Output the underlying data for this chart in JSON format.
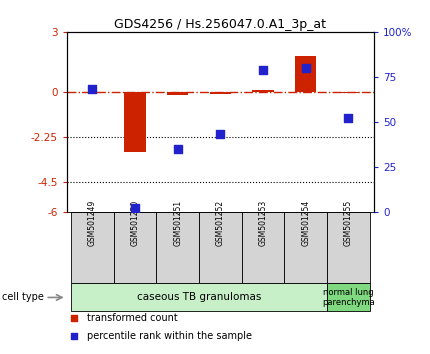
{
  "title": "GDS4256 / Hs.256047.0.A1_3p_at",
  "samples": [
    "GSM501249",
    "GSM501250",
    "GSM501251",
    "GSM501252",
    "GSM501253",
    "GSM501254",
    "GSM501255"
  ],
  "red_values": [
    -0.05,
    -3.0,
    -0.18,
    -0.1,
    0.1,
    1.8,
    -0.08
  ],
  "blue_values": [
    68,
    2,
    35,
    43,
    79,
    80,
    52
  ],
  "left_ylim": [
    -6,
    3
  ],
  "right_ylim": [
    0,
    100
  ],
  "left_yticks": [
    3,
    0,
    -2.25,
    -4.5,
    -6
  ],
  "left_yticklabels": [
    "3",
    "0",
    "-2.25",
    "-4.5",
    "-6"
  ],
  "right_yticks": [
    100,
    75,
    50,
    25,
    0
  ],
  "right_yticklabels": [
    "100%",
    "75",
    "50",
    "25",
    "0"
  ],
  "dotted_lines": [
    -2.25,
    -4.5
  ],
  "group1_label": "caseous TB granulomas",
  "group2_label": "normal lung\nparenchyma",
  "group1_color": "#c8f0c8",
  "group2_color": "#80d880",
  "cell_type_label": "cell type",
  "legend_red_label": "transformed count",
  "legend_blue_label": "percentile rank within the sample",
  "bar_color": "#cc2200",
  "dot_color": "#2222cc",
  "bar_width": 0.5,
  "dot_size": 30,
  "group1_count": 6,
  "group2_count": 1
}
